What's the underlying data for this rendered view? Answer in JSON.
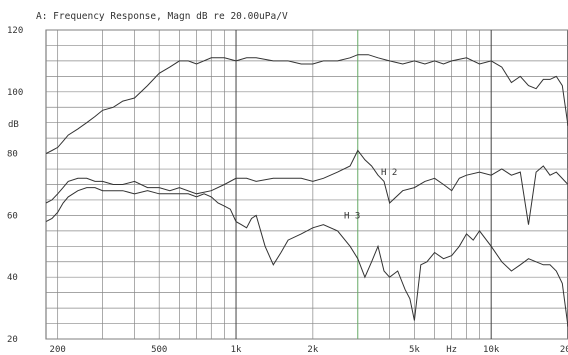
{
  "chart_data": {
    "type": "line",
    "title": "A: Frequency Response, Magn dB re 20.00uPa/V",
    "ylabel": "dB",
    "xlabel": "",
    "x_scale": "log",
    "xlim": [
      180,
      20000
    ],
    "ylim": [
      20,
      120
    ],
    "grid": true,
    "ytick_labels": [
      {
        "value": 120,
        "label": "120"
      },
      {
        "value": 100,
        "label": "100"
      },
      {
        "value": 80,
        "label": "80"
      },
      {
        "value": 60,
        "label": "60"
      },
      {
        "value": 40,
        "label": "40"
      },
      {
        "value": 20,
        "label": "20"
      }
    ],
    "xtick_labels": [
      {
        "value": 200,
        "label": "200"
      },
      {
        "value": 500,
        "label": "500"
      },
      {
        "value": 1000,
        "label": "1k"
      },
      {
        "value": 2000,
        "label": "2k"
      },
      {
        "value": 5000,
        "label": "5k"
      },
      {
        "value": 7000,
        "label": "Hz"
      },
      {
        "value": 10000,
        "label": "10k"
      },
      {
        "value": 20000,
        "label": "20k"
      }
    ],
    "series": [
      {
        "name": "",
        "color": "#333333",
        "x": [
          180,
          190,
          200,
          210,
          220,
          240,
          260,
          280,
          300,
          330,
          360,
          400,
          450,
          500,
          550,
          600,
          650,
          700,
          800,
          900,
          1000,
          1100,
          1200,
          1400,
          1600,
          1800,
          2000,
          2200,
          2500,
          2800,
          3000,
          3300,
          3600,
          4000,
          4500,
          5000,
          5500,
          6000,
          6500,
          7000,
          8000,
          9000,
          10000,
          11000,
          12000,
          13000,
          14000,
          15000,
          16000,
          17000,
          18000,
          19000,
          20000
        ],
        "y": [
          80,
          81,
          82,
          84,
          86,
          88,
          90,
          92,
          94,
          95,
          97,
          98,
          102,
          106,
          108,
          110,
          110,
          109,
          111,
          111,
          110,
          111,
          111,
          110,
          110,
          109,
          109,
          110,
          110,
          111,
          112,
          112,
          111,
          110,
          109,
          110,
          109,
          110,
          109,
          110,
          111,
          109,
          110,
          108,
          103,
          105,
          102,
          101,
          104,
          104,
          105,
          102,
          89
        ]
      },
      {
        "name": "H 2",
        "color": "#333333",
        "x": [
          180,
          190,
          200,
          210,
          220,
          240,
          260,
          280,
          300,
          330,
          360,
          400,
          450,
          500,
          550,
          600,
          700,
          800,
          900,
          1000,
          1100,
          1200,
          1400,
          1600,
          1800,
          2000,
          2200,
          2500,
          2800,
          3000,
          3200,
          3400,
          3600,
          3800,
          4000,
          4500,
          5000,
          5500,
          6000,
          6500,
          7000,
          7500,
          8000,
          9000,
          10000,
          11000,
          12000,
          13000,
          14000,
          15000,
          16000,
          17000,
          18000,
          20000
        ],
        "y": [
          64,
          65,
          67,
          69,
          71,
          72,
          72,
          71,
          71,
          70,
          70,
          71,
          69,
          69,
          68,
          69,
          67,
          68,
          70,
          72,
          72,
          71,
          72,
          72,
          72,
          71,
          72,
          74,
          76,
          81,
          78,
          76,
          73,
          71,
          64,
          68,
          69,
          71,
          72,
          70,
          68,
          72,
          73,
          74,
          73,
          75,
          73,
          74,
          57,
          74,
          76,
          73,
          74,
          70
        ]
      },
      {
        "name": "H 3",
        "color": "#333333",
        "x": [
          180,
          190,
          200,
          210,
          220,
          240,
          260,
          280,
          300,
          330,
          360,
          400,
          450,
          500,
          550,
          600,
          650,
          700,
          750,
          800,
          850,
          900,
          950,
          1000,
          1050,
          1100,
          1150,
          1200,
          1300,
          1400,
          1500,
          1600,
          1800,
          2000,
          2200,
          2500,
          2800,
          3000,
          3200,
          3400,
          3600,
          3800,
          4000,
          4300,
          4600,
          4800,
          5000,
          5300,
          5600,
          6000,
          6500,
          7000,
          7500,
          8000,
          8500,
          9000,
          10000,
          11000,
          12000,
          13000,
          14000,
          15000,
          16000,
          17000,
          18000,
          19000,
          20000
        ],
        "y": [
          58,
          59,
          61,
          64,
          66,
          68,
          69,
          69,
          68,
          68,
          68,
          67,
          68,
          67,
          67,
          67,
          67,
          66,
          67,
          66,
          64,
          63,
          62,
          58,
          57,
          56,
          59,
          60,
          50,
          44,
          48,
          52,
          54,
          56,
          57,
          55,
          50,
          46,
          40,
          45,
          50,
          42,
          40,
          42,
          36,
          33,
          26,
          44,
          45,
          48,
          46,
          47,
          50,
          54,
          52,
          55,
          50,
          45,
          42,
          44,
          46,
          45,
          44,
          44,
          42,
          38,
          24
        ]
      }
    ],
    "annotations": [
      {
        "text": "H 2",
        "x": 3700,
        "y": 74
      },
      {
        "text": "H 3",
        "x": 2650,
        "y": 60
      }
    ]
  }
}
